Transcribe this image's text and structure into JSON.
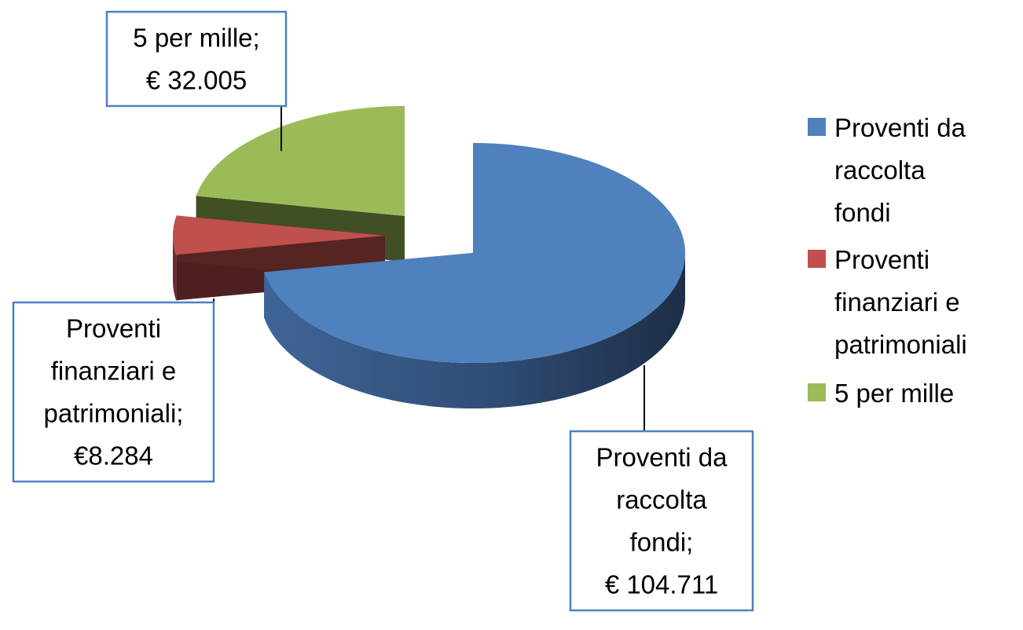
{
  "chart_data": {
    "type": "pie",
    "title": "",
    "three_d": true,
    "exploded": true,
    "legend_position": "right",
    "categories": [
      "Proventi da raccolta fondi",
      "Proventi finanziari e patrimoniali",
      "5 per mille"
    ],
    "values": [
      104711,
      8284,
      32005
    ],
    "colors": [
      "#4F81BD",
      "#C0504D",
      "#9BBB59"
    ],
    "legend": [
      {
        "lines": [
          "Proventi da",
          "raccolta",
          "fondi"
        ]
      },
      {
        "lines": [
          "Proventi",
          "finanziari e",
          "patrimoniali"
        ]
      },
      {
        "lines": [
          "5 per mille"
        ]
      }
    ],
    "data_labels": [
      {
        "lines": [
          "Proventi da",
          "raccolta",
          "fondi;",
          "€ 104.711"
        ]
      },
      {
        "lines": [
          "Proventi",
          "finanziari e",
          "patrimoniali;",
          "€8.284"
        ]
      },
      {
        "lines": [
          "5 per mille;",
          "€ 32.005"
        ]
      }
    ]
  }
}
